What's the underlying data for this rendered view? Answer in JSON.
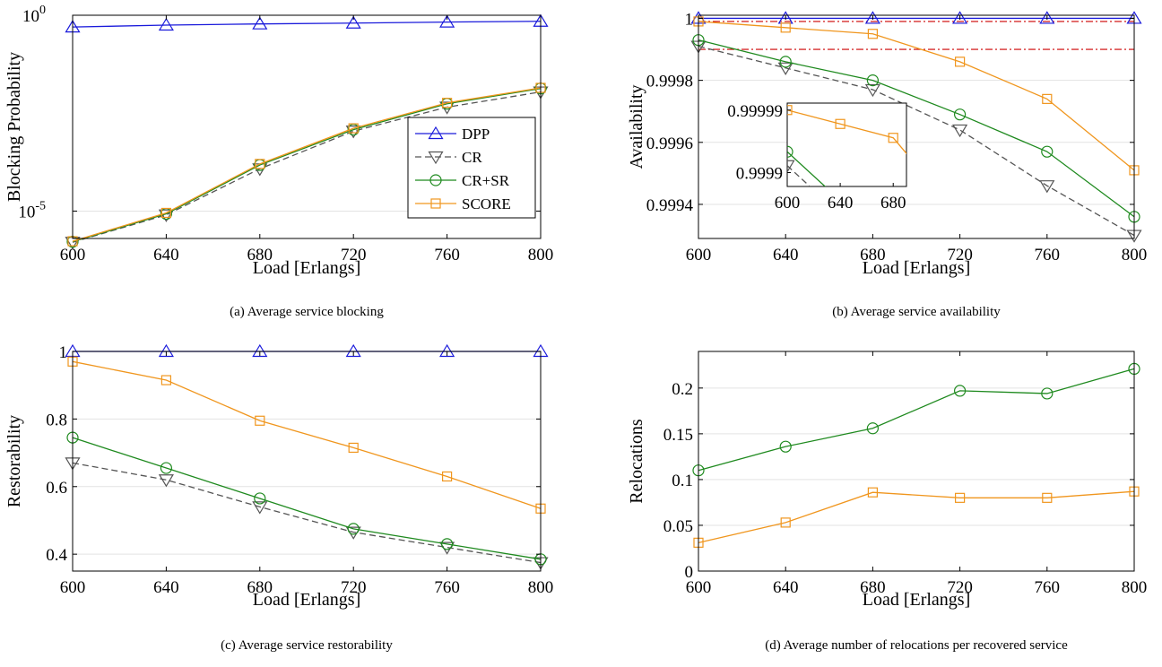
{
  "legend": [
    "DPP",
    "CR",
    "CR+SR",
    "SCORE"
  ],
  "colors": {
    "DPP": "#1a1adb",
    "CR": "#555555",
    "CR+SR": "#1f8a1f",
    "SCORE": "#f0961e",
    "threshold": "#cc0000",
    "grid": "#e3e3e3"
  },
  "markers": {
    "DPP": "triangle-up",
    "CR": "triangle-down",
    "CR+SR": "circle",
    "SCORE": "square"
  },
  "chart_data": [
    {
      "type": "line",
      "caption": "(a) Average service blocking",
      "xlabel": "Load [Erlangs]",
      "ylabel": "Blocking Probability",
      "yscale": "log",
      "x": [
        600,
        640,
        680,
        720,
        760,
        800
      ],
      "xticks": [
        "600",
        "640",
        "680",
        "720",
        "760",
        "800"
      ],
      "yticks": [
        {
          "base": "10",
          "exp": "-5"
        },
        {
          "base": "10",
          "exp": "0"
        }
      ],
      "ylim": [
        2e-06,
        1
      ],
      "grid": true,
      "legend_position": "inside-lower-right",
      "series": [
        {
          "name": "DPP",
          "values": [
            0.5,
            0.56,
            0.6,
            0.63,
            0.67,
            0.7
          ]
        },
        {
          "name": "CR",
          "values": [
            1.6e-06,
            8e-06,
            0.00012,
            0.0011,
            0.0045,
            0.011
          ]
        },
        {
          "name": "CR+SR",
          "values": [
            1.65e-06,
            8.5e-06,
            0.00015,
            0.0012,
            0.0055,
            0.0135
          ]
        },
        {
          "name": "SCORE",
          "values": [
            1.7e-06,
            9e-06,
            0.00016,
            0.0013,
            0.0058,
            0.014
          ]
        }
      ]
    },
    {
      "type": "line",
      "caption": "(b) Average service availability",
      "xlabel": "Load [Erlangs]",
      "ylabel": "Availability",
      "x": [
        600,
        640,
        680,
        720,
        760,
        800
      ],
      "xticks": [
        "600",
        "640",
        "680",
        "720",
        "760",
        "800"
      ],
      "yticks": [
        "0.9994",
        "0.9996",
        "0.9998",
        "1"
      ],
      "ylim": [
        0.99929,
        1.00001
      ],
      "grid": true,
      "reference_lines": [
        0.99999,
        0.9999
      ],
      "series": [
        {
          "name": "DPP",
          "values": [
            1.0,
            1.0,
            1.0,
            1.0,
            1.0,
            1.0
          ]
        },
        {
          "name": "CR",
          "values": [
            0.99991,
            0.99984,
            0.99977,
            0.99964,
            0.99946,
            0.9993
          ]
        },
        {
          "name": "CR+SR",
          "values": [
            0.99993,
            0.99986,
            0.9998,
            0.99969,
            0.99957,
            0.99936
          ]
        },
        {
          "name": "SCORE",
          "values": [
            0.99999,
            0.99997,
            0.99995,
            0.99986,
            0.99974,
            0.99951
          ]
        }
      ],
      "inset": {
        "xticks": [
          "600",
          "640",
          "680"
        ],
        "yticks": [
          "0.9999",
          "0.99999"
        ]
      }
    },
    {
      "type": "line",
      "caption": "(c) Average service restorability",
      "xlabel": "Load [Erlangs]",
      "ylabel": "Restorability",
      "x": [
        600,
        640,
        680,
        720,
        760,
        800
      ],
      "xticks": [
        "600",
        "640",
        "680",
        "720",
        "760",
        "800"
      ],
      "yticks": [
        "0.4",
        "0.6",
        "0.8",
        "1"
      ],
      "ylim": [
        0.35,
        1.0
      ],
      "grid": true,
      "series": [
        {
          "name": "DPP",
          "values": [
            1.0,
            1.0,
            1.0,
            1.0,
            1.0,
            1.0
          ]
        },
        {
          "name": "CR",
          "values": [
            0.67,
            0.62,
            0.54,
            0.465,
            0.42,
            0.375
          ]
        },
        {
          "name": "CR+SR",
          "values": [
            0.745,
            0.655,
            0.565,
            0.475,
            0.43,
            0.385
          ]
        },
        {
          "name": "SCORE",
          "values": [
            0.97,
            0.915,
            0.795,
            0.715,
            0.63,
            0.535
          ]
        }
      ]
    },
    {
      "type": "line",
      "caption": "(d) Average number of relocations per recovered service",
      "xlabel": "Load [Erlangs]",
      "ylabel": "Relocations",
      "x": [
        600,
        640,
        680,
        720,
        760,
        800
      ],
      "xticks": [
        "600",
        "640",
        "680",
        "720",
        "760",
        "800"
      ],
      "yticks": [
        "0",
        "0.05",
        "0.1",
        "0.15",
        "0.2"
      ],
      "ylim": [
        0,
        0.24
      ],
      "grid": true,
      "series": [
        {
          "name": "CR+SR",
          "values": [
            0.11,
            0.136,
            0.156,
            0.197,
            0.194,
            0.221
          ]
        },
        {
          "name": "SCORE",
          "values": [
            0.031,
            0.053,
            0.086,
            0.08,
            0.08,
            0.087
          ]
        }
      ]
    }
  ]
}
